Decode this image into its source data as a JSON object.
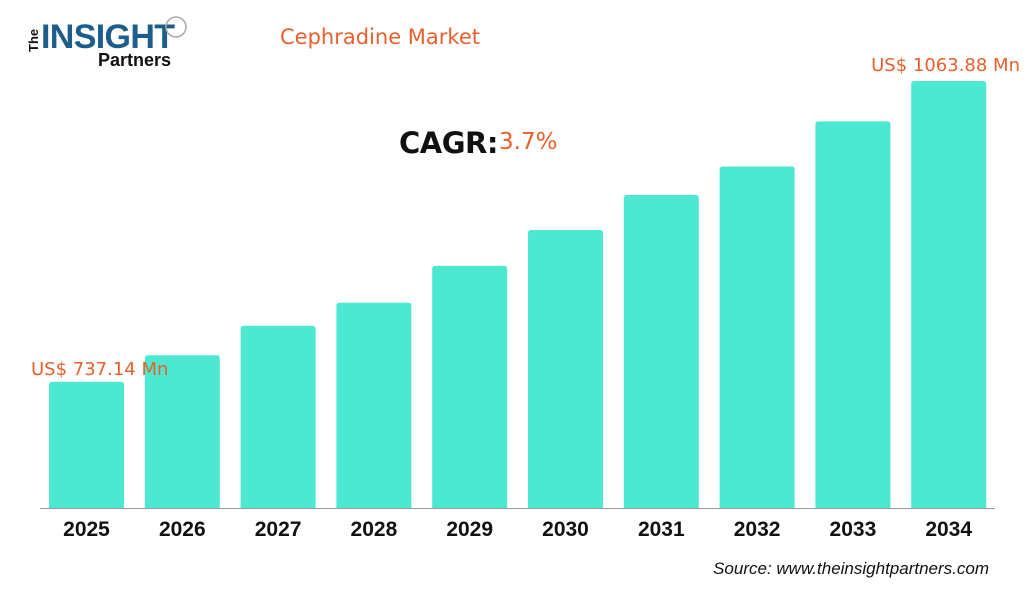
{
  "logo": {
    "text_the": "The",
    "text_insight": "INSIGHT",
    "text_partners": "Partners"
  },
  "colors": {
    "bar": "#4de8d2",
    "accent": "#e8602c",
    "logo_blue": "#1d5d8c"
  },
  "cagr": {
    "label": "CAGR:",
    "value": "3.7%"
  },
  "source": "Source: www.theinsightpartners.com",
  "chart_data": {
    "type": "bar",
    "title": "Cephradine Market",
    "categories": [
      "2025",
      "2026",
      "2027",
      "2028",
      "2029",
      "2030",
      "2031",
      "2032",
      "2033",
      "2034"
    ],
    "values": [
      737.14,
      766,
      798,
      823,
      863,
      902,
      940,
      971,
      1020,
      1063.88
    ],
    "data_labels": {
      "first": "US$ 737.14 Mn",
      "last": "US$ 1063.88 Mn"
    },
    "unit": "US$ Mn",
    "xlabel": "",
    "ylabel": "",
    "ylim": [
      600,
      1070
    ],
    "grid": false,
    "legend": "none"
  }
}
